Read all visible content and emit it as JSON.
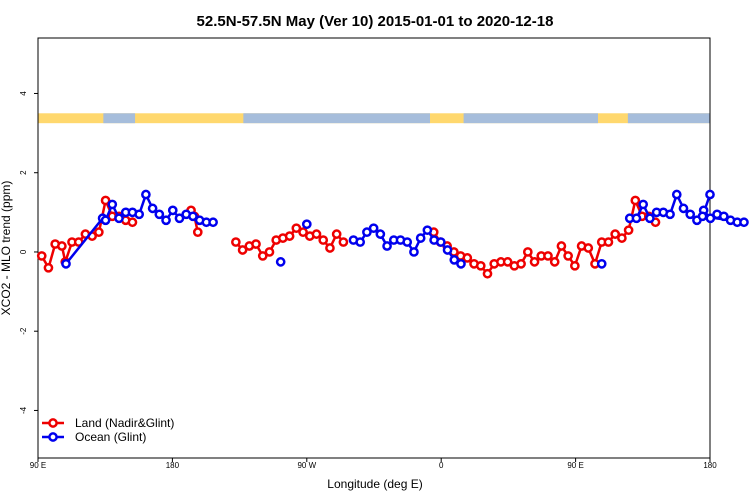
{
  "chart_data": {
    "type": "line",
    "title": "52.5N-57.5N May (Ver 10)   2015-01-01 to 2020-12-18",
    "xlabel": "Longitude (deg E)",
    "ylabel": "XCO2 - MLO trend (ppm)",
    "xlim": [
      90,
      450
    ],
    "ylim": [
      -5.2,
      5.4
    ],
    "x_ticks": [
      {
        "value": 90,
        "label": "90 E"
      },
      {
        "value": 162,
        "label": "180"
      },
      {
        "value": 234,
        "label": "90 W"
      },
      {
        "value": 306,
        "label": "0"
      },
      {
        "value": 378,
        "label": "90 E"
      },
      {
        "value": 450,
        "label": "180"
      }
    ],
    "y_ticks": [
      {
        "value": -4,
        "label": "-4"
      },
      {
        "value": -2,
        "label": "-2"
      },
      {
        "value": 0,
        "label": "0"
      },
      {
        "value": 2,
        "label": "2"
      },
      {
        "value": 4,
        "label": "4"
      }
    ],
    "grid": false,
    "legend_position": "bottom-left",
    "land_ocean_band": {
      "y_range": [
        3.25,
        3.5
      ],
      "land_color": "#ffd86e",
      "ocean_color": "#a6bddb"
    },
    "series": [
      {
        "name": "Land (Nadir&Glint)",
        "color": "#ee0000",
        "points": [
          [
            92,
            -0.1
          ],
          [
            95.6,
            -0.4
          ],
          [
            99.2,
            0.2
          ],
          [
            102.8,
            0.15
          ],
          [
            104.6,
            -0.25
          ],
          [
            108.2,
            0.25
          ],
          [
            111.8,
            0.25
          ],
          [
            115.4,
            0.45
          ],
          [
            119,
            0.4
          ],
          [
            122.6,
            0.5
          ],
          [
            126.2,
            1.3
          ],
          [
            129.8,
            0.9
          ],
          [
            133.4,
            0.9
          ],
          [
            137,
            0.8
          ],
          [
            140.6,
            0.75
          ],
          [
            null,
            null
          ],
          [
            172,
            1.05
          ],
          [
            173.8,
            0.9
          ],
          [
            175.6,
            0.5
          ],
          [
            null,
            null
          ],
          [
            196,
            0.25
          ],
          [
            199.6,
            0.05
          ],
          [
            203.2,
            0.15
          ],
          [
            206.8,
            0.2
          ],
          [
            210.4,
            -0.1
          ],
          [
            214,
            0
          ],
          [
            217.6,
            0.3
          ],
          [
            221.2,
            0.35
          ],
          [
            224.8,
            0.4
          ],
          [
            228.4,
            0.6
          ],
          [
            232,
            0.5
          ],
          [
            235.6,
            0.4
          ],
          [
            239.2,
            0.45
          ],
          [
            242.8,
            0.3
          ],
          [
            246.4,
            0.1
          ],
          [
            250,
            0.45
          ],
          [
            253.6,
            0.25
          ],
          [
            null,
            null
          ],
          [
            302,
            0.5
          ],
          [
            305.6,
            0.25
          ],
          [
            309.2,
            0.15
          ],
          [
            312.8,
            0
          ],
          [
            316.4,
            -0.1
          ],
          [
            320,
            -0.15
          ],
          [
            323.6,
            -0.3
          ],
          [
            327.2,
            -0.35
          ],
          [
            330.8,
            -0.55
          ],
          [
            334.4,
            -0.3
          ],
          [
            338,
            -0.25
          ],
          [
            341.6,
            -0.25
          ],
          [
            345.2,
            -0.35
          ],
          [
            348.8,
            -0.3
          ],
          [
            352.4,
            0
          ],
          [
            356,
            -0.25
          ],
          [
            359.6,
            -0.1
          ],
          [
            363.2,
            -0.1
          ],
          [
            366.8,
            -0.25
          ],
          [
            370.4,
            0.15
          ],
          [
            374,
            -0.1
          ],
          [
            377.6,
            -0.35
          ],
          [
            381.2,
            0.15
          ],
          [
            384.8,
            0.1
          ],
          [
            388.4,
            -0.3
          ],
          [
            392,
            0.25
          ],
          [
            395.6,
            0.25
          ],
          [
            399.2,
            0.45
          ],
          [
            402.8,
            0.35
          ],
          [
            406.4,
            0.55
          ],
          [
            410,
            1.3
          ],
          [
            413.6,
            0.9
          ],
          [
            417.2,
            0.9
          ],
          [
            420.8,
            0.75
          ]
        ]
      },
      {
        "name": "Ocean (Glint)",
        "color": "#0000ee",
        "points": [
          [
            105,
            -0.3
          ],
          [
            124.6,
            0.85
          ],
          [
            126.2,
            0.8
          ],
          [
            129.8,
            1.2
          ],
          [
            133.4,
            0.85
          ],
          [
            137,
            1
          ],
          [
            140.6,
            1
          ],
          [
            144.2,
            0.95
          ],
          [
            147.8,
            1.45
          ],
          [
            151.4,
            1.1
          ],
          [
            155,
            0.95
          ],
          [
            158.6,
            0.8
          ],
          [
            162.2,
            1.05
          ],
          [
            165.8,
            0.85
          ],
          [
            169.4,
            0.95
          ],
          [
            173,
            0.9
          ],
          [
            176.6,
            0.8
          ],
          [
            180.2,
            0.75
          ],
          [
            183.8,
            0.75
          ],
          [
            null,
            null
          ],
          [
            220,
            -0.25
          ],
          [
            null,
            null
          ],
          [
            234,
            0.7
          ],
          [
            null,
            null
          ],
          [
            259,
            0.3
          ],
          [
            262.6,
            0.25
          ],
          [
            266.2,
            0.5
          ],
          [
            269.8,
            0.6
          ],
          [
            273.4,
            0.45
          ],
          [
            277,
            0.15
          ],
          [
            280.6,
            0.3
          ],
          [
            284.2,
            0.3
          ],
          [
            287.8,
            0.25
          ],
          [
            291.4,
            0
          ],
          [
            295,
            0.35
          ],
          [
            298.6,
            0.55
          ],
          [
            302.2,
            0.3
          ],
          [
            305.8,
            0.25
          ],
          [
            309.4,
            0.05
          ],
          [
            313,
            -0.2
          ],
          [
            316.6,
            -0.3
          ],
          [
            null,
            null
          ],
          [
            392,
            -0.3
          ],
          [
            null,
            null
          ],
          [
            407,
            0.85
          ],
          [
            410.6,
            0.85
          ],
          [
            414.2,
            1.2
          ],
          [
            417.8,
            0.85
          ],
          [
            421.4,
            1
          ],
          [
            425,
            1
          ],
          [
            428.6,
            0.95
          ],
          [
            432.2,
            1.45
          ],
          [
            435.8,
            1.1
          ],
          [
            439.4,
            0.95
          ],
          [
            443,
            0.8
          ],
          [
            446.6,
            1.05
          ],
          [
            450.2,
            0.85
          ],
          [
            453.8,
            0.95
          ],
          [
            457.4,
            0.9
          ],
          [
            461,
            0.8
          ],
          [
            464.6,
            0.75
          ],
          [
            468.2,
            0.75
          ],
          [
            446,
            0.9
          ],
          [
            450,
            1.45
          ]
        ]
      }
    ]
  }
}
